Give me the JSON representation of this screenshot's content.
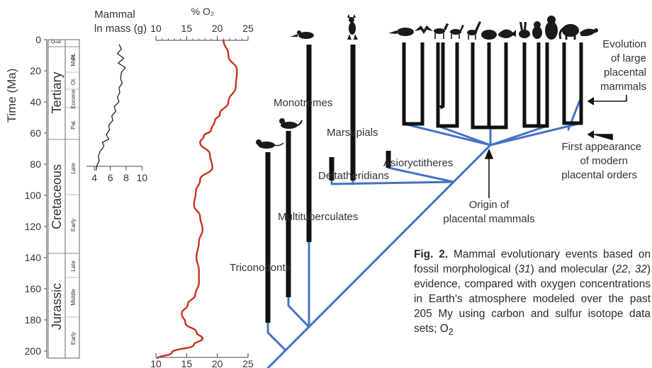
{
  "time_axis": {
    "label": "Time (Ma)",
    "ticks": [
      "0",
      "20",
      "40",
      "60",
      "80",
      "100",
      "120",
      "140",
      "160",
      "180",
      "200"
    ]
  },
  "periods": [
    {
      "name": "Quat",
      "subs": []
    },
    {
      "name": "Tertiary",
      "subs": [
        "Pl.",
        "Mioc.",
        "Ol.",
        "Eocene",
        "Pal."
      ]
    },
    {
      "name": "Cretaceous",
      "subs": [
        "Late",
        "Early"
      ]
    },
    {
      "name": "Jurassic",
      "subs": [
        "Late",
        "Middle",
        "Early"
      ]
    }
  ],
  "mass_panel": {
    "title_line1": "Mammal",
    "title_line2": "ln mass (g)",
    "ticks": [
      "4",
      "6",
      "8",
      "10"
    ]
  },
  "o2_panel": {
    "title": "% O₂",
    "ticks": [
      "10",
      "15",
      "20",
      "25"
    ],
    "colors": {
      "curve": "#c8321e"
    }
  },
  "chart_data": [
    {
      "type": "line",
      "title": "Mammal ln mass (g)",
      "xlabel": "ln mass (g)",
      "ylabel": "Time (Ma)",
      "xlim": [
        3,
        10
      ],
      "ylim": [
        0,
        205
      ],
      "series": [
        {
          "x": [
            7.1,
            7.4,
            6.9,
            7.7,
            7.0,
            7.9,
            7.4,
            7.3,
            7.5,
            7.1,
            7.2,
            6.9,
            7.1,
            6.5,
            6.7,
            6.2,
            6.3,
            5.8,
            5.9,
            5.5,
            5.8,
            5.0,
            5.2,
            5.0,
            4.7,
            4.5,
            4.6,
            4.3,
            4.2
          ],
          "y": [
            3,
            6,
            9,
            12,
            15,
            18,
            21,
            25,
            28,
            31,
            34,
            37,
            40,
            43,
            46,
            49,
            52,
            55,
            58,
            61,
            64,
            66,
            68,
            70,
            72,
            75,
            78,
            81,
            84
          ]
        }
      ]
    },
    {
      "type": "line",
      "title": "% O₂",
      "xlabel": "% O₂",
      "ylabel": "Time (Ma)",
      "xlim": [
        10,
        25
      ],
      "ylim": [
        0,
        205
      ],
      "series": [
        {
          "x": [
            21.0,
            21.8,
            23.2,
            23.0,
            21.8,
            20.4,
            19.6,
            19.0,
            17.8,
            17.2,
            18.8,
            19.2,
            17.2,
            16.5,
            16.2,
            17.2,
            17.6,
            17.0,
            16.6,
            17.0,
            17.0,
            16.4,
            15.2,
            14.2,
            14.8,
            16.6,
            17.6,
            16.2,
            12.6,
            10.2
          ],
          "y": [
            0,
            10,
            20,
            30,
            40,
            48,
            52,
            58,
            62,
            66,
            74,
            82,
            90,
            98,
            106,
            114,
            122,
            130,
            140,
            148,
            156,
            164,
            170,
            176,
            182,
            188,
            192,
            196,
            201,
            205
          ]
        }
      ]
    }
  ],
  "tree": {
    "labels": {
      "monotremes": "Monotremes",
      "marsupials": "Marsupials",
      "asioryctitheres": "Asioryctitheres",
      "deltatheridians": "Deltatheridians",
      "multituberculates": "Multituberculates",
      "triconodonts": "Triconodonts"
    },
    "annotations": {
      "evolution": [
        "Evolution",
        "of large",
        "placental",
        "mammals"
      ],
      "first_appearance": [
        "First appearance",
        "of modern",
        "placental orders"
      ],
      "origin": [
        "Origin of",
        "placental mammals"
      ]
    },
    "colors": {
      "branch": "#4472c4",
      "lineage": "#111111"
    }
  },
  "caption": {
    "label": "Fig. 2.",
    "text_parts": [
      " Mammal evolutionary events based on fossil morphological (",
      "31",
      ") and molecular (",
      "22",
      ", ",
      "32",
      ") evidence, compared with oxygen concentrations in Earth’s atmosphere modeled over the past 205 My using carbon and sulfur isotope data sets; O",
      "2"
    ]
  },
  "silhouettes": [
    "rodent-silhouette",
    "weasel-silhouette",
    "platypus-silhouette",
    "kangaroo-silhouette",
    "anteater-silhouette",
    "bat-silhouette",
    "horse-silhouette",
    "deer-silhouette",
    "giraffe-silhouette",
    "armadillo-silhouette",
    "whale-silhouette",
    "rabbit-silhouette",
    "monkey-silhouette",
    "gorilla-silhouette",
    "elephant-silhouette",
    "seal-silhouette"
  ]
}
